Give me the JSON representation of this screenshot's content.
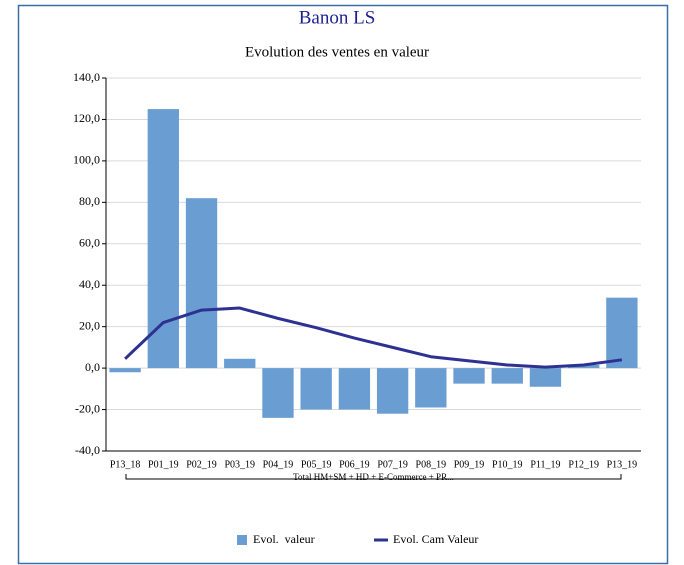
{
  "chart_data": {
    "type": "bar_line",
    "title": "Banon LS",
    "subtitle": "Evolution des ventes en valeur",
    "categories": [
      "P13_18",
      "P01_19",
      "P02_19",
      "P03_19",
      "P04_19",
      "P05_19",
      "P06_19",
      "P07_19",
      "P08_19",
      "P09_19",
      "P10_19",
      "P11_19",
      "P12_19",
      "P13_19"
    ],
    "category_group": "Total HM+SM + HD + E-Commerce + PR...",
    "series": [
      {
        "name": "Evol.  valeur",
        "type": "bar",
        "color": "#6a9ed2",
        "values": [
          -2,
          125,
          82,
          4.5,
          -24,
          -20,
          -20,
          -22,
          -19,
          -7.5,
          -7.5,
          -9,
          1.5,
          34
        ]
      },
      {
        "name": "Evol. Cam Valeur",
        "type": "line",
        "color": "#2e3192",
        "values": [
          4.5,
          22,
          28,
          29,
          24,
          19.5,
          14.5,
          10,
          5.5,
          3.5,
          1.5,
          0.5,
          1.5,
          4
        ]
      }
    ],
    "ylim": [
      -40,
      140
    ],
    "yticks": [
      {
        "value": -40,
        "label": "-40,0"
      },
      {
        "value": -20,
        "label": "-20,0"
      },
      {
        "value": 0,
        "label": "0,0"
      },
      {
        "value": 20,
        "label": "20,0"
      },
      {
        "value": 40,
        "label": "40,0"
      },
      {
        "value": 60,
        "label": "60,0"
      },
      {
        "value": 80,
        "label": "80,0"
      },
      {
        "value": 100,
        "label": "100,0"
      },
      {
        "value": 120,
        "label": "120,0"
      },
      {
        "value": 140,
        "label": "140,0"
      }
    ],
    "grid": true,
    "legend": "bottom"
  }
}
